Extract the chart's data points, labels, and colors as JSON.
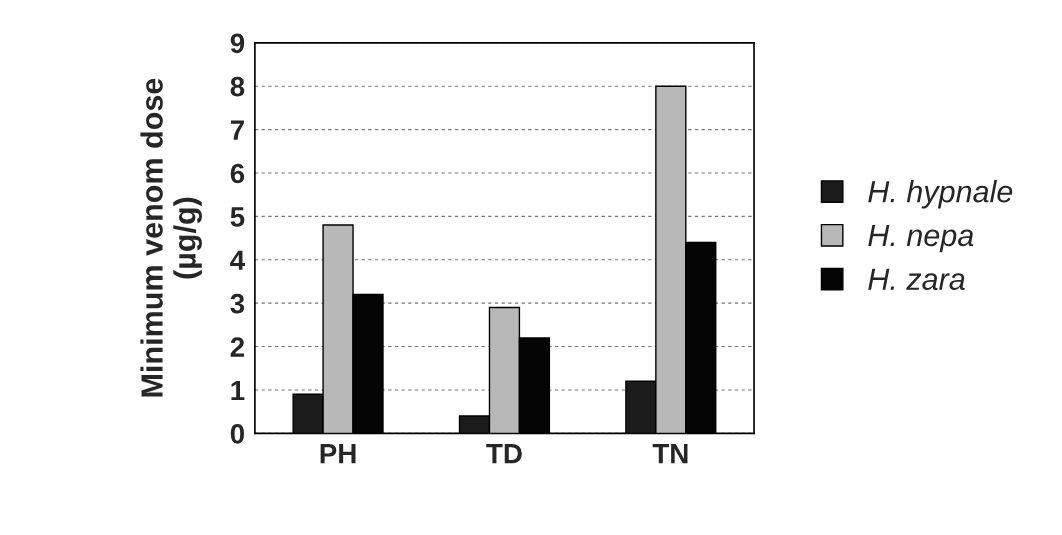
{
  "chart_data": {
    "type": "bar",
    "ylabel": "Minimum venom dose\n(µg/g)",
    "categories": [
      "PH",
      "TD",
      "TN"
    ],
    "series": [
      {
        "name": "H. hypnale",
        "color": "#1c1c1c",
        "values": [
          0.9,
          0.4,
          1.2
        ]
      },
      {
        "name": "H. nepa",
        "color": "#b8b8b8",
        "values": [
          4.8,
          2.9,
          8.0
        ]
      },
      {
        "name": "H. zara",
        "color": "#050505",
        "values": [
          3.2,
          2.2,
          4.4
        ]
      }
    ],
    "ylim": [
      0,
      9
    ],
    "yticks": [
      0,
      1,
      2,
      3,
      4,
      5,
      6,
      7,
      8,
      9
    ],
    "grid": "y",
    "legend": "right"
  }
}
